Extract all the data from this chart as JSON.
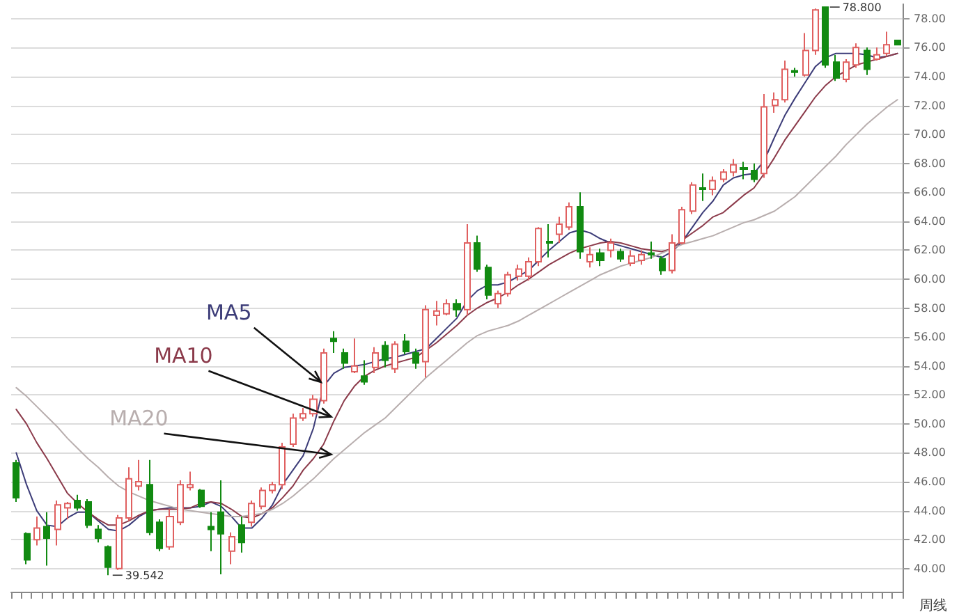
{
  "chart_data": {
    "type": "candlestick",
    "categories": [
      null,
      null,
      null,
      null,
      null,
      null,
      null,
      null,
      null,
      null,
      null,
      null,
      null,
      null,
      null,
      null,
      null,
      null,
      null,
      null,
      null,
      null,
      null,
      null,
      null,
      null,
      null,
      null,
      null,
      null,
      null,
      null,
      null,
      null,
      null,
      null,
      null,
      null,
      null,
      null,
      null,
      null,
      null,
      null,
      null,
      null,
      null,
      null,
      null,
      null,
      null,
      null,
      null,
      null,
      null,
      null,
      null,
      null,
      null,
      null,
      null,
      null,
      null,
      null,
      null,
      null,
      null,
      null,
      null,
      null,
      null,
      null,
      null,
      null,
      null,
      null,
      null,
      null,
      null,
      null,
      null,
      null,
      null,
      null,
      null,
      null,
      null
    ],
    "ohlc": [
      [
        47.3,
        47.5,
        44.6,
        44.9
      ],
      [
        42.4,
        42.5,
        40.3,
        40.6
      ],
      [
        42.0,
        43.6,
        41.6,
        42.8
      ],
      [
        42.9,
        43.9,
        40.2,
        42.1
      ],
      [
        42.7,
        44.7,
        41.6,
        44.4
      ],
      [
        44.2,
        44.6,
        43.4,
        44.5
      ],
      [
        44.7,
        45.1,
        44.0,
        44.2
      ],
      [
        44.6,
        44.8,
        42.8,
        43.0
      ],
      [
        42.7,
        43.0,
        41.8,
        42.1
      ],
      [
        41.5,
        41.6,
        39.542,
        40.1
      ],
      [
        40.0,
        43.7,
        39.9,
        43.5
      ],
      [
        43.5,
        47.0,
        43.3,
        46.2
      ],
      [
        45.7,
        47.5,
        45.4,
        46.0
      ],
      [
        45.8,
        47.5,
        42.3,
        42.5
      ],
      [
        43.2,
        43.4,
        41.2,
        41.4
      ],
      [
        41.5,
        44.1,
        41.3,
        43.6
      ],
      [
        43.2,
        46.1,
        43.0,
        45.8
      ],
      [
        45.6,
        46.7,
        45.4,
        45.8
      ],
      [
        45.4,
        45.5,
        44.2,
        44.3
      ],
      [
        42.9,
        43.9,
        41.2,
        42.7
      ],
      [
        43.9,
        46.1,
        39.6,
        42.4
      ],
      [
        41.2,
        42.5,
        40.3,
        42.2
      ],
      [
        43.0,
        43.6,
        41.1,
        41.8
      ],
      [
        43.2,
        44.7,
        42.9,
        44.5
      ],
      [
        44.3,
        45.6,
        44.1,
        45.4
      ],
      [
        45.4,
        46.0,
        45.2,
        45.8
      ],
      [
        45.8,
        48.7,
        45.5,
        48.4
      ],
      [
        48.6,
        50.7,
        48.4,
        50.4
      ],
      [
        50.4,
        51.1,
        50.2,
        50.7
      ],
      [
        50.7,
        52.0,
        50.5,
        51.7
      ],
      [
        51.6,
        55.2,
        51.4,
        54.9
      ],
      [
        55.9,
        56.4,
        54.9,
        55.7
      ],
      [
        54.9,
        55.2,
        53.8,
        54.2
      ],
      [
        53.6,
        55.9,
        53.5,
        54.0
      ],
      [
        53.3,
        54.4,
        52.7,
        52.9
      ],
      [
        53.9,
        55.3,
        53.5,
        54.9
      ],
      [
        55.4,
        55.7,
        53.9,
        54.4
      ],
      [
        53.8,
        55.7,
        53.5,
        55.5
      ],
      [
        55.7,
        56.2,
        54.8,
        55.0
      ],
      [
        54.9,
        55.2,
        53.8,
        54.2
      ],
      [
        54.3,
        58.2,
        53.2,
        57.9
      ],
      [
        57.5,
        58.5,
        56.8,
        57.8
      ],
      [
        57.6,
        58.6,
        57.5,
        58.3
      ],
      [
        58.3,
        58.6,
        57.4,
        57.9
      ],
      [
        57.9,
        63.8,
        57.5,
        62.5
      ],
      [
        62.5,
        63.0,
        60.5,
        60.7
      ],
      [
        60.8,
        61.0,
        58.6,
        58.9
      ],
      [
        58.3,
        59.2,
        58.0,
        59.0
      ],
      [
        59.0,
        60.5,
        58.8,
        60.3
      ],
      [
        60.2,
        61.0,
        59.9,
        60.7
      ],
      [
        60.2,
        61.5,
        59.9,
        61.2
      ],
      [
        61.2,
        63.6,
        60.9,
        63.5
      ],
      [
        62.6,
        63.8,
        61.5,
        62.5
      ],
      [
        63.1,
        64.3,
        62.5,
        63.8
      ],
      [
        63.6,
        65.3,
        63.4,
        65.0
      ],
      [
        65.0,
        66.0,
        61.4,
        61.9
      ],
      [
        61.2,
        62.2,
        60.8,
        61.7
      ],
      [
        61.8,
        62.1,
        60.9,
        61.3
      ],
      [
        62.0,
        62.8,
        61.5,
        62.5
      ],
      [
        61.9,
        62.1,
        61.2,
        61.4
      ],
      [
        61.1,
        62.0,
        60.9,
        61.6
      ],
      [
        61.3,
        62.0,
        61.0,
        61.7
      ],
      [
        61.8,
        62.6,
        61.4,
        61.7
      ],
      [
        61.4,
        61.6,
        60.3,
        60.6
      ],
      [
        60.6,
        63.1,
        60.4,
        62.5
      ],
      [
        62.5,
        65.0,
        62.4,
        64.8
      ],
      [
        64.7,
        66.7,
        64.5,
        66.5
      ],
      [
        66.3,
        67.3,
        65.4,
        66.2
      ],
      [
        66.2,
        67.1,
        65.8,
        66.8
      ],
      [
        66.9,
        67.6,
        66.7,
        67.4
      ],
      [
        67.4,
        68.3,
        67.1,
        67.9
      ],
      [
        67.7,
        68.1,
        66.9,
        67.6
      ],
      [
        67.5,
        68.0,
        66.7,
        66.9
      ],
      [
        67.3,
        72.8,
        67.0,
        71.9
      ],
      [
        72.0,
        72.9,
        71.5,
        72.4
      ],
      [
        72.4,
        75.1,
        72.2,
        74.5
      ],
      [
        74.4,
        74.6,
        74.0,
        74.3
      ],
      [
        74.1,
        77.0,
        74.0,
        75.8
      ],
      [
        75.8,
        78.7,
        75.5,
        78.6
      ],
      [
        78.8,
        78.8,
        74.6,
        74.8
      ],
      [
        75.0,
        75.5,
        73.7,
        73.9
      ],
      [
        73.8,
        75.2,
        73.6,
        75.0
      ],
      [
        74.8,
        76.3,
        74.6,
        76.0
      ],
      [
        75.8,
        76.0,
        74.1,
        74.5
      ],
      [
        75.2,
        76.0,
        75.1,
        75.5
      ],
      [
        75.6,
        77.1,
        75.4,
        76.2
      ],
      [
        76.5,
        76.5,
        76.2,
        76.2
      ]
    ],
    "colors": [
      "#118a11",
      "#118a11",
      "#e06060",
      "#118a11",
      "#e06060",
      "#e06060",
      "#118a11",
      "#118a11",
      "#118a11",
      "#118a11",
      "#e06060",
      "#e06060",
      "#e06060",
      "#118a11",
      "#118a11",
      "#e06060",
      "#e06060",
      "#e06060",
      "#118a11",
      "#118a11",
      "#118a11",
      "#e06060",
      "#118a11",
      "#e06060",
      "#e06060",
      "#e06060",
      "#e06060",
      "#e06060",
      "#e06060",
      "#e06060",
      "#e06060",
      "#118a11",
      "#118a11",
      "#e06060",
      "#118a11",
      "#e06060",
      "#118a11",
      "#e06060",
      "#118a11",
      "#118a11",
      "#e06060",
      "#e06060",
      "#e06060",
      "#118a11",
      "#e06060",
      "#118a11",
      "#118a11",
      "#e06060",
      "#e06060",
      "#e06060",
      "#e06060",
      "#e06060",
      "#118a11",
      "#e06060",
      "#e06060",
      "#118a11",
      "#e06060",
      "#118a11",
      "#e06060",
      "#118a11",
      "#e06060",
      "#e06060",
      "#118a11",
      "#118a11",
      "#e06060",
      "#e06060",
      "#e06060",
      "#118a11",
      "#e06060",
      "#e06060",
      "#e06060",
      "#118a11",
      "#118a11",
      "#e06060",
      "#e06060",
      "#e06060",
      "#118a11",
      "#e06060",
      "#e06060",
      "#118a11",
      "#118a11",
      "#e06060",
      "#e06060",
      "#118a11",
      "#e06060",
      "#e06060",
      "#118a11"
    ],
    "series": [
      {
        "name": "MA5",
        "type": "line",
        "color": "#3c3c78",
        "values": [
          48.0,
          45.8,
          44.0,
          43.0,
          42.9,
          43.5,
          43.9,
          43.9,
          43.3,
          42.7,
          42.6,
          43.0,
          43.6,
          44.0,
          44.1,
          44.2,
          44.2,
          44.2,
          44.3,
          44.6,
          44.3,
          43.6,
          42.8,
          42.8,
          43.5,
          44.4,
          45.8,
          46.8,
          47.8,
          49.7,
          52.6,
          53.5,
          53.9,
          54.0,
          54.1,
          54.3,
          54.5,
          54.6,
          54.8,
          55.0,
          55.2,
          55.9,
          56.6,
          57.3,
          58.5,
          59.2,
          59.6,
          59.6,
          59.8,
          60.2,
          60.6,
          61.3,
          62.0,
          62.6,
          63.2,
          63.4,
          63.2,
          62.8,
          62.5,
          62.3,
          62.1,
          61.9,
          61.7,
          61.5,
          61.9,
          62.6,
          63.6,
          64.6,
          65.4,
          66.5,
          67.0,
          67.2,
          67.3,
          68.2,
          69.8,
          71.3,
          72.5,
          73.6,
          74.7,
          75.3,
          75.6,
          75.6,
          75.6,
          75.5,
          75.3,
          75.4,
          75.6
        ]
      },
      {
        "name": "MA10",
        "type": "line",
        "color": "#8b3a4a",
        "values": [
          51.0,
          50.0,
          48.7,
          47.6,
          46.4,
          45.2,
          44.5,
          43.9,
          43.4,
          43.0,
          43.0,
          43.3,
          43.7,
          44.0,
          44.1,
          44.1,
          44.1,
          44.2,
          44.5,
          44.6,
          44.5,
          44.1,
          43.6,
          43.5,
          43.8,
          44.2,
          44.9,
          45.7,
          46.8,
          47.6,
          48.6,
          50.2,
          51.6,
          52.6,
          53.3,
          53.7,
          54.0,
          54.2,
          54.4,
          54.6,
          55.1,
          55.6,
          56.2,
          56.8,
          57.5,
          58.0,
          58.4,
          58.7,
          59.1,
          59.6,
          60.0,
          60.5,
          61.0,
          61.4,
          61.8,
          62.1,
          62.3,
          62.5,
          62.6,
          62.5,
          62.3,
          62.1,
          62.0,
          61.9,
          62.1,
          62.7,
          63.2,
          63.7,
          64.3,
          64.6,
          65.2,
          65.8,
          66.3,
          67.3,
          68.4,
          69.6,
          70.6,
          71.6,
          72.6,
          73.4,
          74.0,
          74.4,
          74.8,
          75.0,
          75.2,
          75.4,
          75.6
        ]
      },
      {
        "name": "MA20",
        "type": "line",
        "color": "#b8aeae",
        "values": [
          52.5,
          51.9,
          51.2,
          50.5,
          49.8,
          49.0,
          48.3,
          47.6,
          47.0,
          46.3,
          45.7,
          45.3,
          45.0,
          44.7,
          44.5,
          44.3,
          44.1,
          44.0,
          43.9,
          43.8,
          43.7,
          43.6,
          43.6,
          43.7,
          43.8,
          44.1,
          44.5,
          45.0,
          45.6,
          46.2,
          46.9,
          47.6,
          48.2,
          48.8,
          49.4,
          49.9,
          50.4,
          51.1,
          51.8,
          52.5,
          53.2,
          53.8,
          54.4,
          55.0,
          55.6,
          56.1,
          56.4,
          56.6,
          56.8,
          57.1,
          57.5,
          57.9,
          58.3,
          58.7,
          59.1,
          59.5,
          59.9,
          60.3,
          60.6,
          60.9,
          61.1,
          61.3,
          61.5,
          61.8,
          62.1,
          62.4,
          62.6,
          62.8,
          63.0,
          63.3,
          63.6,
          63.9,
          64.1,
          64.4,
          64.7,
          65.2,
          65.7,
          66.4,
          67.1,
          67.8,
          68.5,
          69.3,
          70.0,
          70.7,
          71.3,
          71.9,
          72.4
        ]
      }
    ],
    "ylim": [
      38.4,
      79
    ],
    "yticks": [
      {
        "value": 40,
        "label": "40.00"
      },
      {
        "value": 42,
        "label": "42.00"
      },
      {
        "value": 44,
        "label": "44.00"
      },
      {
        "value": 46,
        "label": "46.00"
      },
      {
        "value": 48,
        "label": "48.00"
      },
      {
        "value": 50,
        "label": "50.00"
      },
      {
        "value": 52,
        "label": "52.00"
      },
      {
        "value": 54,
        "label": "54.00"
      },
      {
        "value": 56,
        "label": "56.00"
      },
      {
        "value": 58,
        "label": "58.00"
      },
      {
        "value": 60,
        "label": "60.00"
      },
      {
        "value": 62,
        "label": "62.00"
      },
      {
        "value": 64,
        "label": "64.00"
      },
      {
        "value": 66,
        "label": "66.00"
      },
      {
        "value": 68,
        "label": "68.00"
      },
      {
        "value": 70,
        "label": "70.00"
      },
      {
        "value": 72,
        "label": "72.00"
      },
      {
        "value": 74,
        "label": "74.00"
      },
      {
        "value": 76,
        "label": "76.00"
      },
      {
        "value": 78,
        "label": "78.00"
      }
    ],
    "grid": "y",
    "tick_labels": "y",
    "marker": "none",
    "line_style": "solid",
    "annotations": [
      "78.800",
      "39.542",
      "周线"
    ]
  }
}
